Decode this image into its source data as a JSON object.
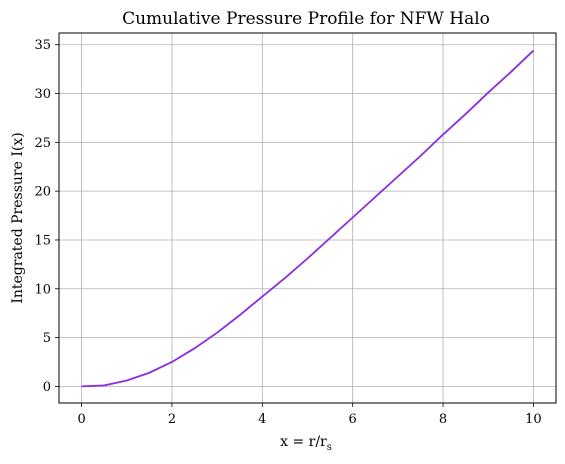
{
  "chart_data": {
    "type": "line",
    "title": "Cumulative Pressure Profile for NFW Halo",
    "xlabel": "x = r/r_s",
    "ylabel": "Integrated Pressure I(x)",
    "xlim": [
      -0.5,
      10.5
    ],
    "ylim": [
      -1.7,
      36.2
    ],
    "xticks": [
      "0",
      "2",
      "4",
      "6",
      "8",
      "10"
    ],
    "yticks": [
      "0",
      "5",
      "10",
      "15",
      "20",
      "25",
      "30",
      "35"
    ],
    "grid": true,
    "legend": "none",
    "series": [
      {
        "color": "#8a2be2",
        "x": [
          0,
          0.5,
          1,
          1.5,
          2,
          2.5,
          3,
          3.5,
          4,
          4.5,
          5,
          5.5,
          6,
          6.5,
          7,
          7.5,
          8,
          8.5,
          9,
          9.5,
          10
        ],
        "values": [
          0,
          0.1,
          0.6,
          1.4,
          2.5,
          3.9,
          5.5,
          7.3,
          9.2,
          11.1,
          13.1,
          15.2,
          17.3,
          19.4,
          21.5,
          23.6,
          25.8,
          27.9,
          30.1,
          32.2,
          34.4
        ]
      }
    ]
  }
}
